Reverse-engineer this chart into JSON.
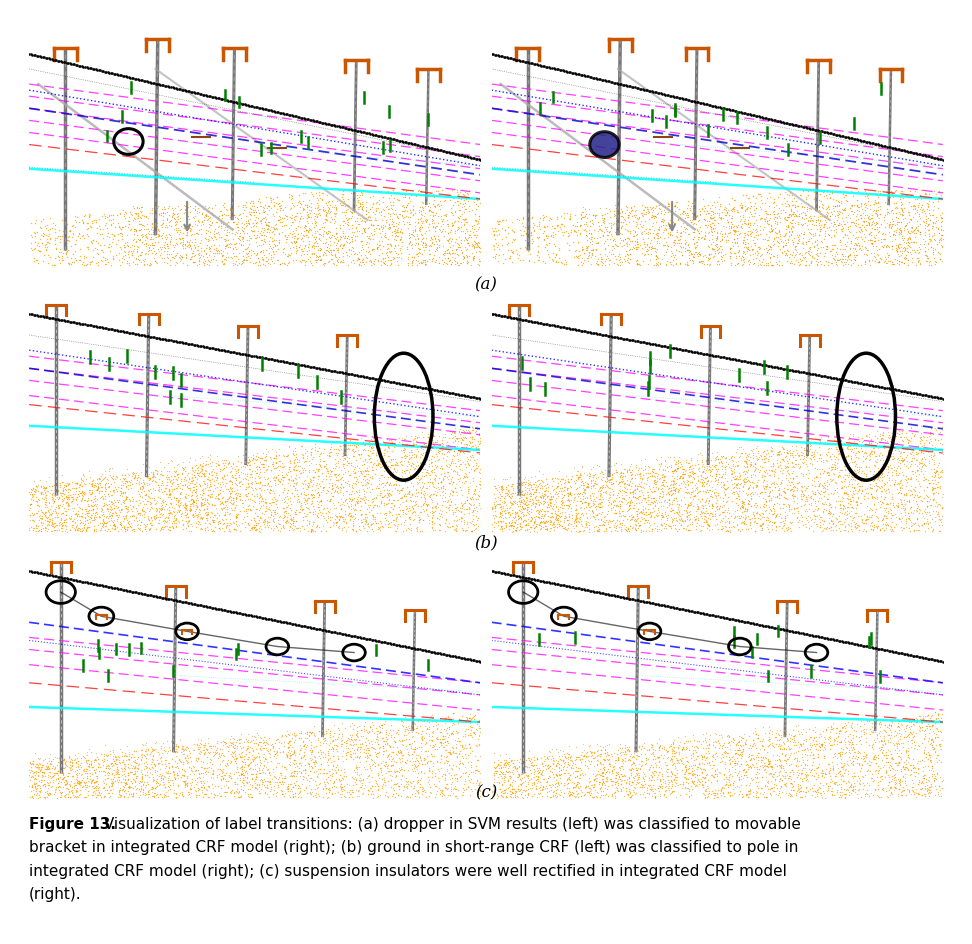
{
  "caption_bold": "Figure 13.",
  "caption_rest": " Visualization of label transitions: (a) dropper in SVM results (left) was classified to movable bracket in integrated CRF model (right); (b) ground in short-range CRF (left) was classified to pole in integrated CRF model (right); (c) suspension insulators were well rectified in integrated CRF model (right).",
  "row_labels": [
    "(a)",
    "(b)",
    "(c)"
  ],
  "bg_color": "#ffffff",
  "fig_width": 9.72,
  "fig_height": 9.44,
  "caption_fontsize": 11.0,
  "label_fontsize": 12
}
